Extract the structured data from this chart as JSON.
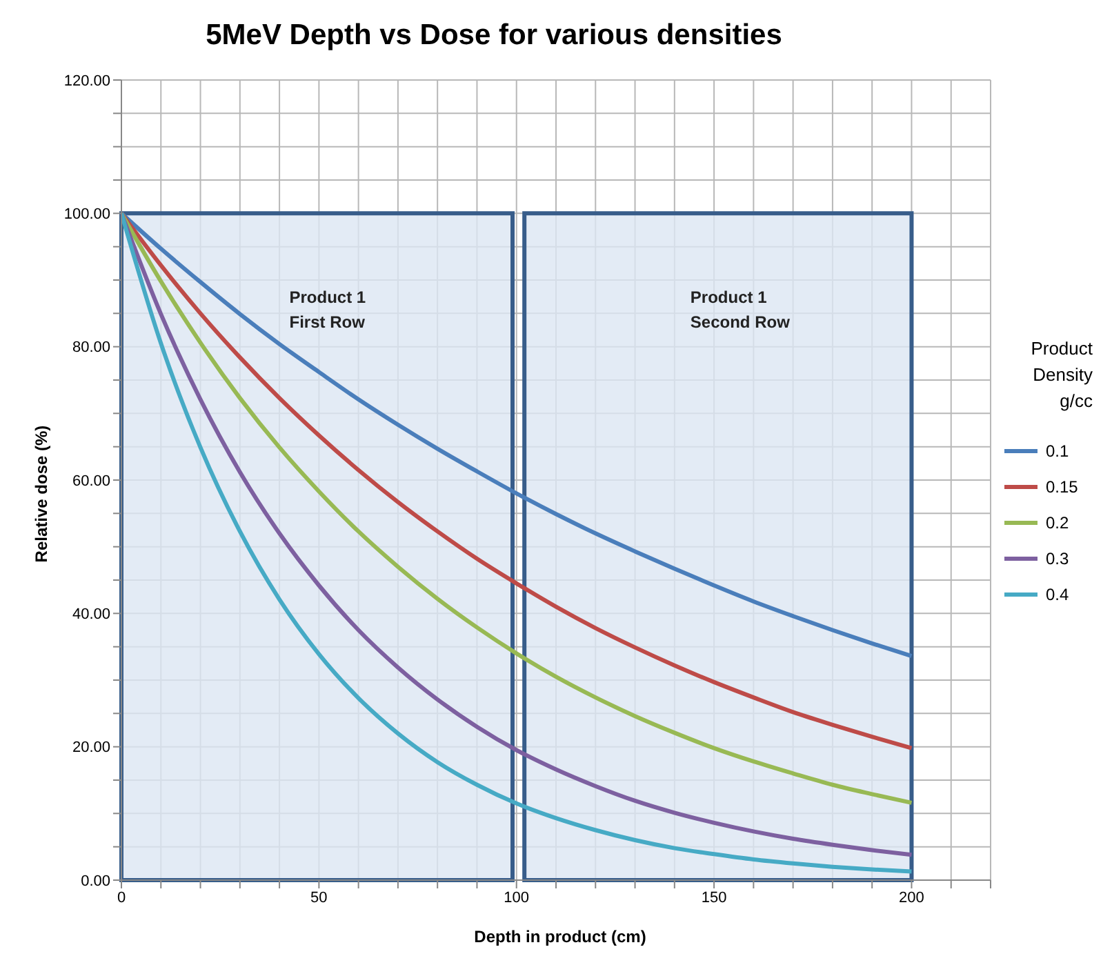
{
  "chart_data": {
    "type": "line",
    "title": "5MeV Depth vs Dose for various densities",
    "xlabel": "Depth in product (cm)",
    "ylabel": "Relative dose (%)",
    "legend_title": "Product Density g/cc",
    "x": [
      0,
      10,
      20,
      30,
      40,
      50,
      60,
      70,
      80,
      90,
      100,
      110,
      120,
      130,
      140,
      150,
      160,
      170,
      180,
      190,
      200
    ],
    "series": [
      {
        "name": "0.1",
        "color": "#4a7ebb",
        "values": [
          100,
          94.7,
          89.7,
          84.9,
          80.4,
          76.2,
          72.1,
          68.3,
          64.7,
          61.3,
          58.0,
          54.9,
          52.0,
          49.3,
          46.7,
          44.2,
          41.8,
          39.6,
          37.5,
          35.5,
          33.6
        ]
      },
      {
        "name": "0.15",
        "color": "#be4b48",
        "values": [
          100,
          92.2,
          85.0,
          78.4,
          72.3,
          66.7,
          61.5,
          56.7,
          52.3,
          48.2,
          44.5,
          41.0,
          37.8,
          34.9,
          32.2,
          29.7,
          27.4,
          25.2,
          23.3,
          21.5,
          19.8
        ]
      },
      {
        "name": "0.2",
        "color": "#98b954",
        "values": [
          100,
          89.8,
          80.6,
          72.3,
          64.9,
          58.3,
          52.3,
          47.0,
          42.2,
          37.9,
          34.0,
          30.5,
          27.4,
          24.6,
          22.1,
          19.8,
          17.8,
          16.0,
          14.3,
          12.9,
          11.6
        ]
      },
      {
        "name": "0.3",
        "color": "#7d60a0",
        "values": [
          100,
          84.9,
          72.1,
          61.2,
          52.0,
          44.2,
          37.5,
          31.9,
          27.1,
          23.0,
          19.5,
          16.6,
          14.1,
          11.9,
          10.1,
          8.6,
          7.3,
          6.2,
          5.3,
          4.5,
          3.8
        ]
      },
      {
        "name": "0.4",
        "color": "#46aac5",
        "values": [
          100,
          80.5,
          64.9,
          52.3,
          42.1,
          33.9,
          27.3,
          22.0,
          17.7,
          14.3,
          11.5,
          9.3,
          7.5,
          6.0,
          4.8,
          3.9,
          3.1,
          2.5,
          2.0,
          1.6,
          1.3
        ]
      }
    ],
    "xlim": [
      0,
      220
    ],
    "xticks": [
      0,
      {
        "value": 10,
        "label": null
      },
      {
        "value": 20,
        "label": null
      },
      {
        "value": 30,
        "label": null
      },
      {
        "value": 40,
        "label": null
      },
      50,
      {
        "value": 60,
        "label": null
      },
      {
        "value": 70,
        "label": null
      },
      {
        "value": 80,
        "label": null
      },
      {
        "value": 90,
        "label": null
      },
      100,
      {
        "value": 110,
        "label": null
      },
      {
        "value": 120,
        "label": null
      },
      {
        "value": 130,
        "label": null
      },
      {
        "value": 140,
        "label": null
      },
      150,
      {
        "value": 160,
        "label": null
      },
      {
        "value": 170,
        "label": null
      },
      {
        "value": 180,
        "label": null
      },
      {
        "value": 190,
        "label": null
      },
      200,
      {
        "value": 210,
        "label": null
      },
      {
        "value": 220,
        "label": null
      }
    ],
    "ylim": [
      0,
      120
    ],
    "yticks": [
      {
        "value": 0,
        "label": "0.00"
      },
      {
        "value": 5,
        "label": null
      },
      {
        "value": 10,
        "label": null
      },
      {
        "value": 15,
        "label": null
      },
      {
        "value": 20,
        "label": "20.00"
      },
      {
        "value": 25,
        "label": null
      },
      {
        "value": 30,
        "label": null
      },
      {
        "value": 35,
        "label": null
      },
      {
        "value": 40,
        "label": "40.00"
      },
      {
        "value": 45,
        "label": null
      },
      {
        "value": 50,
        "label": null
      },
      {
        "value": 55,
        "label": null
      },
      {
        "value": 60,
        "label": "60.00"
      },
      {
        "value": 65,
        "label": null
      },
      {
        "value": 70,
        "label": null
      },
      {
        "value": 75,
        "label": null
      },
      {
        "value": 80,
        "label": "80.00"
      },
      {
        "value": 85,
        "label": null
      },
      {
        "value": 90,
        "label": null
      },
      {
        "value": 95,
        "label": null
      },
      {
        "value": 100,
        "label": "100.00"
      },
      {
        "value": 105,
        "label": null
      },
      {
        "value": 110,
        "label": null
      },
      {
        "value": 115,
        "label": null
      },
      {
        "value": 120,
        "label": "120.00"
      }
    ],
    "bands": [
      {
        "axis": "x",
        "from": 0,
        "to": 99,
        "label": "Product 1\nFirst Row",
        "color": "#dce6f2"
      },
      {
        "axis": "x",
        "from": 102,
        "to": 200,
        "label": "Product 1\nSecond Row",
        "color": "#dce6f2"
      }
    ],
    "grid": true,
    "legend": "right",
    "marker": "none",
    "line_style": "solid"
  }
}
